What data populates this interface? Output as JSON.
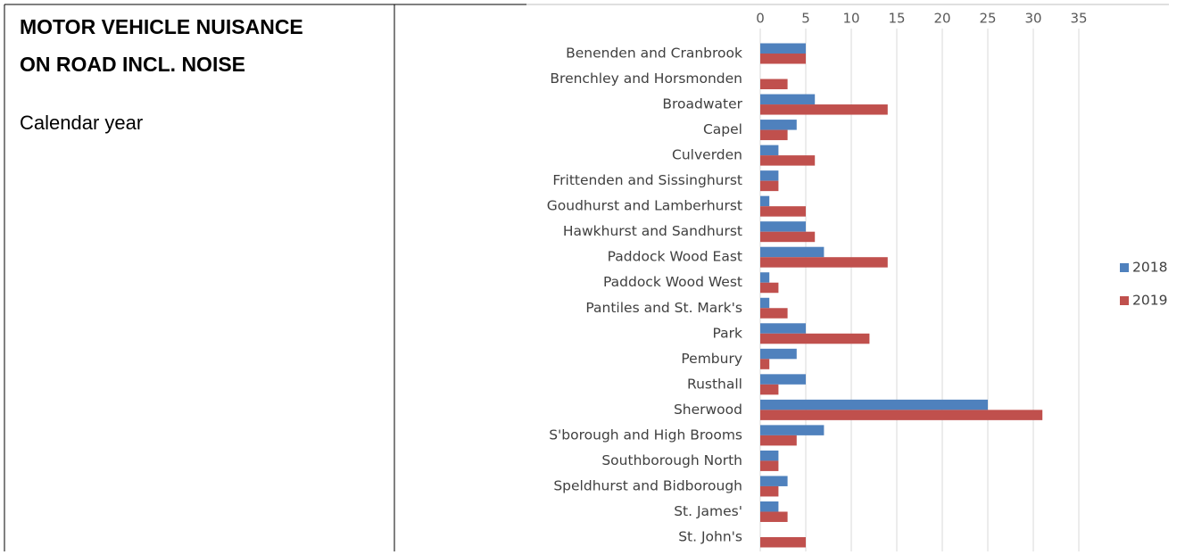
{
  "panel": {
    "title_lines": [
      "MOTOR VEHICLE NUISANCE",
      "ON ROAD INCL. NOISE"
    ],
    "subtitle": "Calendar year"
  },
  "chart_data": {
    "type": "hbar",
    "categories": [
      "Benenden and Cranbrook",
      "Brenchley and Horsmonden",
      "Broadwater",
      "Capel",
      "Culverden",
      "Frittenden and Sissinghurst",
      "Goudhurst and Lamberhurst",
      "Hawkhurst and Sandhurst",
      "Paddock Wood East",
      "Paddock Wood West",
      "Pantiles and St. Mark's",
      "Park",
      "Pembury",
      "Rusthall",
      "Sherwood",
      "S'borough and High Brooms",
      "Southborough North",
      "Speldhurst and Bidborough",
      "St. James'",
      "St. John's"
    ],
    "series": [
      {
        "name": "2018",
        "color": "#4f81bd",
        "values": [
          5,
          0,
          6,
          4,
          2,
          2,
          1,
          5,
          7,
          1,
          1,
          5,
          4,
          5,
          25,
          7,
          2,
          3,
          2,
          0
        ]
      },
      {
        "name": "2019",
        "color": "#c0504d",
        "values": [
          5,
          3,
          14,
          3,
          6,
          2,
          5,
          6,
          14,
          2,
          3,
          12,
          1,
          2,
          31,
          4,
          2,
          2,
          3,
          5
        ]
      }
    ],
    "xlim": [
      0,
      35
    ],
    "xticks": [
      0,
      5,
      10,
      15,
      20,
      25,
      30,
      35
    ],
    "grid": true,
    "legend": "right"
  }
}
